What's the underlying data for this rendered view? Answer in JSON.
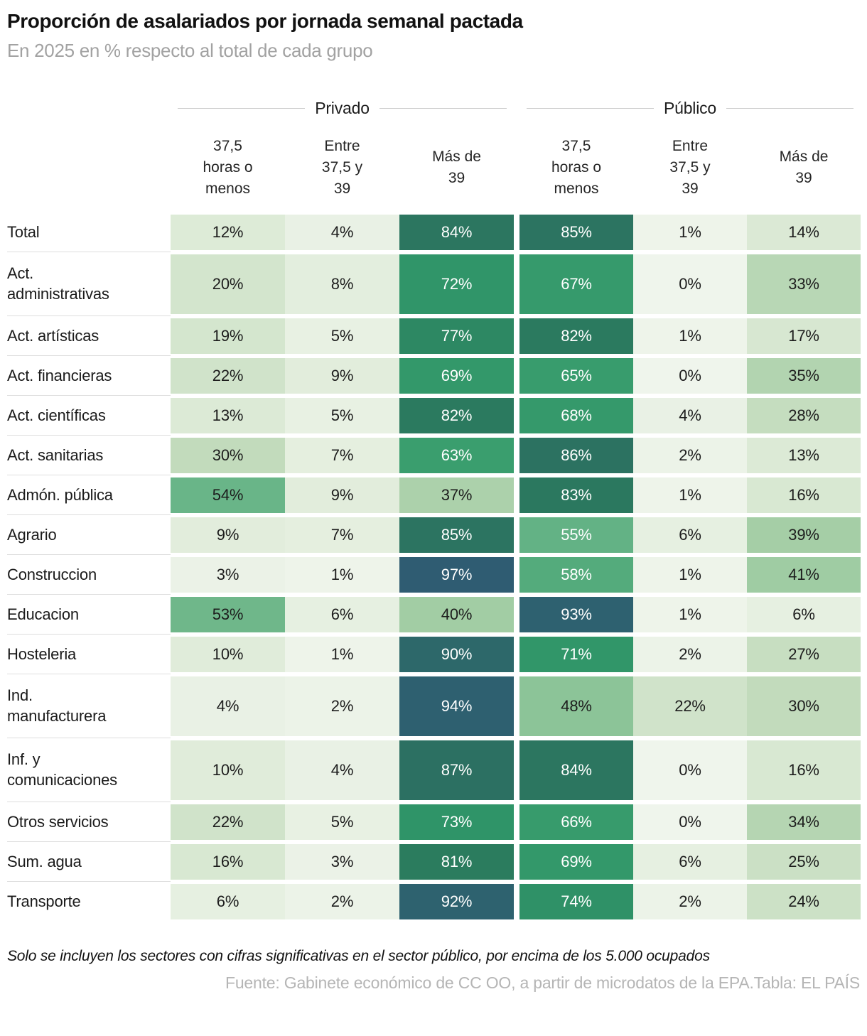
{
  "header": {
    "title": "Proporción de asalariados por jornada semanal pactada",
    "subtitle": "En 2025 en % respecto al total de cada grupo"
  },
  "table": {
    "groups": [
      {
        "label": "Privado"
      },
      {
        "label": "Público"
      }
    ],
    "col_headers": [
      "37,5\nhoras o\nmenos",
      "Entre\n37,5 y\n39",
      "Más de\n39",
      "37,5\nhoras o\nmenos",
      "Entre\n37,5 y\n39",
      "Más de\n39"
    ]
  },
  "chart_data": {
    "type": "table",
    "title": "Proporción de asalariados por jornada semanal pactada",
    "subtitle": "En 2025 en % respecto al total de cada grupo",
    "unit": "%",
    "column_groups": [
      {
        "label": "Privado",
        "columns": [
          "37,5 horas o menos",
          "Entre 37,5 y 39",
          "Más de 39"
        ]
      },
      {
        "label": "Público",
        "columns": [
          "37,5 horas o menos",
          "Entre 37,5 y 39",
          "Más de 39"
        ]
      }
    ],
    "rows": [
      {
        "label": "Total",
        "values": [
          12,
          4,
          84,
          85,
          1,
          14
        ]
      },
      {
        "label": "Act. administrativas",
        "label_display": "Act.\nadministrativas",
        "values": [
          20,
          8,
          72,
          67,
          0,
          33
        ]
      },
      {
        "label": "Act. artísticas",
        "values": [
          19,
          5,
          77,
          82,
          1,
          17
        ]
      },
      {
        "label": "Act. financieras",
        "values": [
          22,
          9,
          69,
          65,
          0,
          35
        ]
      },
      {
        "label": "Act. científicas",
        "values": [
          13,
          5,
          82,
          68,
          4,
          28
        ]
      },
      {
        "label": "Act. sanitarias",
        "values": [
          30,
          7,
          63,
          86,
          2,
          13
        ]
      },
      {
        "label": "Admón. pública",
        "values": [
          54,
          9,
          37,
          83,
          1,
          16
        ]
      },
      {
        "label": "Agrario",
        "values": [
          9,
          7,
          85,
          55,
          6,
          39
        ]
      },
      {
        "label": "Construccion",
        "values": [
          3,
          1,
          97,
          58,
          1,
          41
        ]
      },
      {
        "label": "Educacion",
        "values": [
          53,
          6,
          40,
          93,
          1,
          6
        ]
      },
      {
        "label": "Hosteleria",
        "values": [
          10,
          1,
          90,
          71,
          2,
          27
        ]
      },
      {
        "label": "Ind. manufacturera",
        "label_display": "Ind.\nmanufacturera",
        "values": [
          4,
          2,
          94,
          48,
          22,
          30
        ]
      },
      {
        "label": "Inf. y comunicaciones",
        "label_display": "Inf. y\ncomunicaciones",
        "values": [
          10,
          4,
          87,
          84,
          0,
          16
        ]
      },
      {
        "label": "Otros servicios",
        "values": [
          22,
          5,
          73,
          66,
          0,
          34
        ]
      },
      {
        "label": "Sum. agua",
        "values": [
          16,
          3,
          81,
          69,
          6,
          25
        ]
      },
      {
        "label": "Transporte",
        "values": [
          6,
          2,
          92,
          74,
          2,
          24
        ]
      }
    ],
    "color_scale": {
      "stops": [
        [
          0,
          "#eff5ec"
        ],
        [
          10,
          "#e0ecda"
        ],
        [
          20,
          "#d3e5cd"
        ],
        [
          30,
          "#c2dbbc"
        ],
        [
          40,
          "#a2cda4"
        ],
        [
          48,
          "#8cc498"
        ],
        [
          55,
          "#63b285"
        ],
        [
          63,
          "#3a9e6e"
        ],
        [
          73,
          "#2f9468"
        ],
        [
          81,
          "#2b7c5e"
        ],
        [
          87,
          "#2c7062"
        ],
        [
          92,
          "#2e626f"
        ],
        [
          100,
          "#2f5873"
        ]
      ],
      "white_text_min": 55,
      "dark_text_color": "#1d1d1d",
      "light_text_color": "#ffffff"
    }
  },
  "footer": {
    "note": "Solo se incluyen los sectores con cifras significativas en el sector público, por encima de los 5.000 ocupados",
    "source": "Fuente: Gabinete económico de CC OO, a partir de microdatos de la EPA.Tabla: EL PAÍS"
  }
}
